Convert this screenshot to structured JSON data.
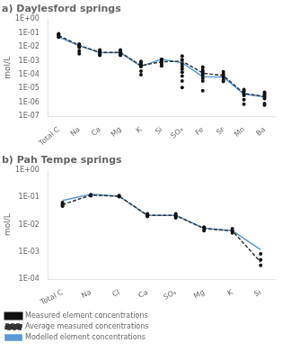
{
  "chart_data": [
    {
      "type": "line",
      "title": "a) Daylesford springs",
      "ylabel": "mol/L",
      "categories": [
        "Total C",
        "Na",
        "Ca",
        "Mg",
        "K",
        "Si",
        "SO₄",
        "Fe",
        "Sr",
        "Mn",
        "Ba"
      ],
      "series": [
        {
          "type": "scatter",
          "marker": "circle",
          "color": "#111111",
          "values": [
            [
              0.088,
              0.075,
              0.062,
              0.05
            ],
            [
              0.016,
              0.013,
              0.011,
              0.009,
              0.005,
              0.0032
            ],
            [
              0.006,
              0.005,
              0.004,
              0.003,
              0.0025
            ],
            [
              0.006,
              0.005,
              0.004,
              0.003,
              0.0025
            ],
            [
              0.0009,
              0.0007,
              0.0005,
              0.00038,
              0.00018,
              0.0001
            ],
            [
              0.0013,
              0.0011,
              0.0008,
              0.0006,
              0.00042
            ],
            [
              0.0022,
              0.0012,
              0.0006,
              0.0004,
              0.00025,
              0.00015,
              8e-05,
              3.5e-05,
              1.2e-05
            ],
            [
              0.00035,
              0.00022,
              0.00016,
              0.00012,
              8.5e-05,
              5.5e-05,
              3.5e-05,
              7e-06
            ],
            [
              0.00016,
              0.00011,
              8.5e-05,
              6.5e-05,
              4.2e-05,
              3.2e-05
            ],
            [
              8.5e-06,
              6.5e-06,
              4.2e-06,
              3.2e-06,
              1.6e-06,
              7.5e-07
            ],
            [
              5.5e-06,
              4.2e-06,
              3.2e-06,
              2.6e-06,
              1.9e-06,
              8.5e-07,
              6.5e-07
            ]
          ]
        },
        {
          "type": "line",
          "line_style": "dashed",
          "color": "#333333",
          "values": [
            0.065,
            0.013,
            0.004,
            0.004,
            0.00045,
            0.00085,
            0.00095,
            0.00013,
            8.5e-05,
            4.5e-06,
            2.7e-06
          ]
        },
        {
          "type": "line",
          "line_style": "solid",
          "color": "#5b9bd5",
          "values": [
            0.052,
            0.012,
            0.0038,
            0.0038,
            0.0004,
            0.0013,
            0.00072,
            7.2e-05,
            6.8e-05,
            4e-06,
            2.6e-06
          ]
        }
      ],
      "log": "y",
      "grid": false,
      "ylim": [
        1e-07,
        1.0
      ],
      "yticks": [
        {
          "value": 1e-07,
          "label": "1E-07"
        },
        {
          "value": 1e-06,
          "label": "1E-06"
        },
        {
          "value": 1e-05,
          "label": "1E-05"
        },
        {
          "value": 0.0001,
          "label": "1E-04"
        },
        {
          "value": 0.001,
          "label": "1E-03"
        },
        {
          "value": 0.01,
          "label": "1E-02"
        },
        {
          "value": 0.1,
          "label": "1E-01"
        },
        {
          "value": 1.0,
          "label": "1E+00"
        }
      ]
    },
    {
      "type": "line",
      "title": "b) Pah Tempe springs",
      "ylabel": "mol/L",
      "categories": [
        "Total C",
        "Na",
        "Cl",
        "Ca",
        "SO₄",
        "Mg",
        "K",
        "Si"
      ],
      "series": [
        {
          "name": "Measured element concentrations",
          "type": "scatter",
          "marker": "circle",
          "color": "#111111",
          "values": [
            [
              0.065,
              0.057,
              0.052,
              0.048
            ],
            [
              0.128,
              0.122,
              0.12,
              0.116
            ],
            [
              0.118,
              0.112,
              0.107
            ],
            [
              0.025,
              0.022,
              0.02
            ],
            [
              0.025,
              0.022,
              0.02,
              0.018
            ],
            [
              0.0082,
              0.0072,
              0.006
            ],
            [
              0.0072,
              0.006,
              0.005
            ],
            [
              0.00085,
              0.00052,
              0.00032
            ]
          ]
        },
        {
          "name": "Average measured concentrations",
          "type": "line",
          "line_style": "dashed",
          "color": "#333333",
          "values": [
            0.055,
            0.122,
            0.112,
            0.022,
            0.022,
            0.0072,
            0.006,
            0.00042
          ]
        },
        {
          "name": "Modelled element concentrations",
          "type": "line",
          "line_style": "solid",
          "color": "#5b9bd5",
          "values": [
            0.078,
            0.132,
            0.112,
            0.022,
            0.022,
            0.0075,
            0.006,
            0.0012
          ]
        }
      ],
      "log": "y",
      "grid": false,
      "legend": "lower left",
      "ylim": [
        0.0001,
        1.0
      ],
      "yticks": [
        {
          "value": 0.0001,
          "label": "1E-04"
        },
        {
          "value": 0.001,
          "label": "1E-03"
        },
        {
          "value": 0.01,
          "label": "1E-02"
        },
        {
          "value": 0.1,
          "label": "1E-01"
        },
        {
          "value": 1.0,
          "label": "1E+00"
        }
      ]
    }
  ]
}
